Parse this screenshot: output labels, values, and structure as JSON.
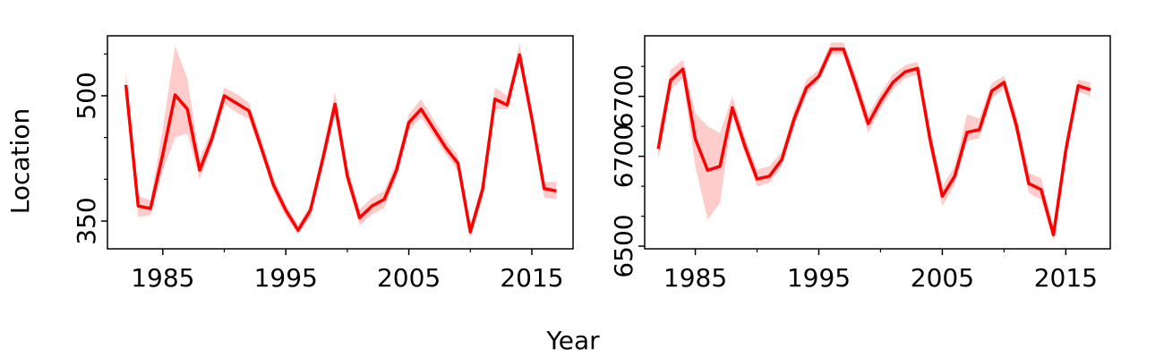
{
  "ylabel": "Location",
  "xlabel": "Year",
  "chart_data": [
    {
      "type": "line",
      "color": "#ff0000",
      "band_color": "#ffcccc",
      "x": [
        1982,
        1983,
        1984,
        1985,
        1986,
        1987,
        1988,
        1989,
        1990,
        1991,
        1992,
        1993,
        1994,
        1995,
        1996,
        1997,
        1998,
        1999,
        2000,
        2001,
        2002,
        2003,
        2004,
        2005,
        2006,
        2007,
        2008,
        2009,
        2010,
        2011,
        2012,
        2013,
        2014,
        2015,
        2016,
        2017
      ],
      "values": [
        513,
        368,
        365,
        430,
        501,
        484,
        411,
        449,
        500,
        491,
        482,
        438,
        393,
        363,
        339,
        363,
        424,
        490,
        404,
        354,
        368,
        376,
        411,
        468,
        484,
        461,
        438,
        419,
        337,
        388,
        496,
        489,
        549,
        473,
        389,
        386
      ],
      "lower": [
        500,
        355,
        357,
        410,
        450,
        455,
        400,
        440,
        490,
        480,
        472,
        430,
        385,
        355,
        335,
        355,
        415,
        478,
        395,
        345,
        358,
        366,
        402,
        458,
        474,
        452,
        430,
        410,
        330,
        378,
        484,
        484,
        540,
        465,
        378,
        376
      ],
      "upper": [
        530,
        380,
        375,
        460,
        560,
        520,
        425,
        460,
        510,
        502,
        492,
        448,
        402,
        370,
        345,
        370,
        434,
        505,
        415,
        364,
        378,
        386,
        422,
        478,
        496,
        472,
        448,
        428,
        345,
        398,
        510,
        500,
        562,
        482,
        397,
        397
      ],
      "xlim": [
        1980.5,
        2018.35
      ],
      "xticks": [
        1985,
        1995,
        2005,
        2015
      ],
      "xminorticks": [
        1990,
        2000,
        2010
      ],
      "ylim": [
        316.8,
        571.8
      ],
      "yticks": [
        350,
        500
      ],
      "yminorticks": [
        400,
        450,
        550
      ]
    },
    {
      "type": "line",
      "color": "#ff0000",
      "band_color": "#ffcccc",
      "x": [
        1982,
        1983,
        1984,
        1985,
        1986,
        1987,
        1988,
        1989,
        1990,
        1991,
        1992,
        1993,
        1994,
        1995,
        1996,
        1997,
        1998,
        1999,
        2000,
        2001,
        2002,
        2003,
        2004,
        2005,
        2006,
        2007,
        2008,
        2009,
        2010,
        2011,
        2012,
        2013,
        2014,
        2015,
        2016,
        2017
      ],
      "values": [
        6666,
        6769,
        6786,
        6681,
        6634,
        6640,
        6728,
        6671,
        6621,
        6625,
        6650,
        6711,
        6758,
        6775,
        6816,
        6816,
        6762,
        6704,
        6738,
        6766,
        6782,
        6787,
        6681,
        6595,
        6625,
        6691,
        6695,
        6753,
        6766,
        6701,
        6614,
        6605,
        6537,
        6664,
        6761,
        6755
      ],
      "lower": [
        6650,
        6755,
        6772,
        6640,
        6560,
        6585,
        6715,
        6660,
        6610,
        6615,
        6640,
        6700,
        6748,
        6768,
        6808,
        6808,
        6750,
        6690,
        6726,
        6755,
        6772,
        6778,
        6665,
        6580,
        6612,
        6678,
        6682,
        6742,
        6756,
        6688,
        6600,
        6590,
        6528,
        6650,
        6752,
        6745
      ],
      "upper": [
        6690,
        6785,
        6800,
        6720,
        6700,
        6690,
        6745,
        6685,
        6635,
        6640,
        6662,
        6724,
        6770,
        6785,
        6826,
        6826,
        6776,
        6718,
        6750,
        6778,
        6792,
        6797,
        6698,
        6610,
        6640,
        6718,
        6712,
        6765,
        6776,
        6716,
        6630,
        6622,
        6548,
        6680,
        6770,
        6766
      ],
      "xlim": [
        1980.9,
        2018.6
      ],
      "xticks": [
        1985,
        1995,
        2005,
        2015
      ],
      "xminorticks": [
        1990,
        2000,
        2010
      ],
      "ylim": [
        6516,
        6836
      ],
      "yticks": [
        {
          "value": 6520,
          "label": "6500"
        },
        {
          "value": 6655,
          "label": "6700"
        },
        {
          "value": 6745,
          "label": "6700"
        }
      ],
      "yminorticks": [
        6565,
        6610,
        6700,
        6790
      ]
    }
  ]
}
